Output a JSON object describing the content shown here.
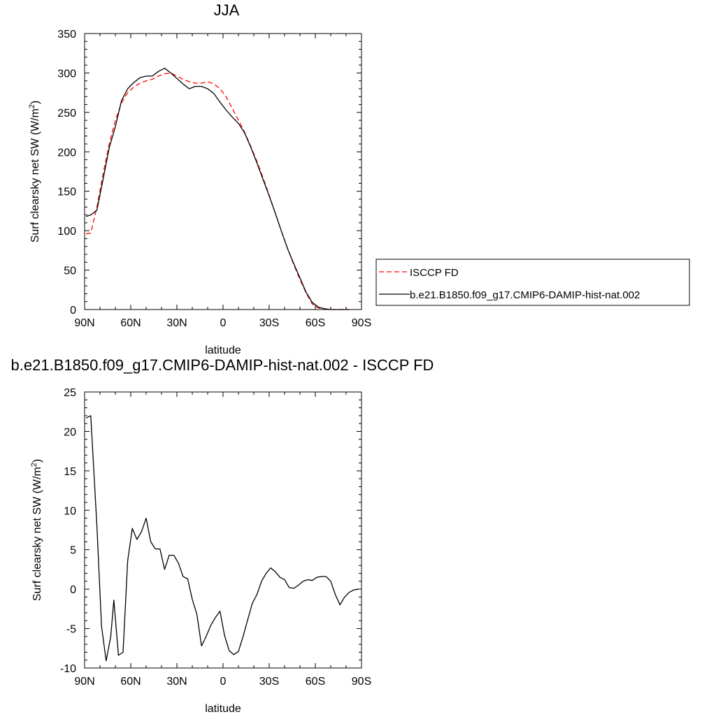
{
  "chart_data": [
    {
      "type": "line",
      "title": "JJA",
      "xlabel": "latitude",
      "ylabel": "Surf clearsky net SW (W/m",
      "ylabel_sup": "2",
      "ylabel_close": ")",
      "xlim": [
        90,
        -90
      ],
      "ylim": [
        0,
        350
      ],
      "x_ticks": [
        90,
        60,
        30,
        0,
        -30,
        -60,
        -90
      ],
      "x_tick_labels": [
        "90N",
        "60N",
        "30N",
        "0",
        "30S",
        "60S",
        "90S"
      ],
      "y_ticks": [
        0,
        50,
        100,
        150,
        200,
        250,
        300,
        350
      ],
      "y_tick_labels": [
        "0",
        "50",
        "100",
        "150",
        "200",
        "250",
        "300",
        "350"
      ],
      "grid": false,
      "legend": "right",
      "series": [
        {
          "name": "ISCCP FD",
          "color": "#ff0000",
          "dash": "dashed",
          "x": [
            89,
            86,
            82,
            78,
            74,
            70,
            66,
            62,
            58,
            54,
            50,
            46,
            42,
            38,
            34,
            30,
            26,
            22,
            18,
            14,
            10,
            6,
            2,
            -2,
            -6,
            -10,
            -14,
            -18,
            -22,
            -26,
            -30,
            -34,
            -38,
            -42,
            -46,
            -50,
            -54,
            -58,
            -62,
            -66,
            -70,
            -74,
            -78,
            -82
          ],
          "y": [
            96,
            97,
            130,
            172,
            210,
            240,
            262,
            275,
            282,
            287,
            290,
            292,
            296,
            299,
            300,
            296,
            292,
            289,
            287,
            287,
            289,
            286,
            280,
            270,
            255,
            240,
            225,
            207,
            188,
            167,
            145,
            122,
            99,
            77,
            57,
            38,
            21,
            7,
            2,
            1,
            0,
            0,
            0,
            0
          ]
        },
        {
          "name": "b.e21.B1850.f09_g17.CMIP6-DAMIP-hist-nat.002",
          "color": "#000000",
          "dash": "solid",
          "x": [
            89,
            86,
            82,
            78,
            74,
            70,
            66,
            62,
            58,
            54,
            50,
            46,
            42,
            38,
            34,
            30,
            26,
            22,
            18,
            14,
            10,
            6,
            2,
            -2,
            -6,
            -10,
            -14,
            -18,
            -22,
            -26,
            -30,
            -34,
            -38,
            -42,
            -46,
            -50,
            -54,
            -58,
            -62,
            -66,
            -70,
            -74,
            -78,
            -82
          ],
          "y": [
            118,
            120,
            126,
            165,
            205,
            232,
            265,
            280,
            288,
            294,
            296,
            296,
            302,
            306,
            300,
            293,
            286,
            280,
            283,
            283,
            280,
            274,
            263,
            253,
            244,
            236,
            224,
            206,
            186,
            165,
            144,
            122,
            99,
            77,
            58,
            40,
            22,
            9,
            3,
            1,
            0,
            0,
            0,
            0
          ]
        }
      ]
    },
    {
      "type": "line",
      "title": "b.e21.B1850.f09_g17.CMIP6-DAMIP-hist-nat.002 - ISCCP FD",
      "xlabel": "latitude",
      "ylabel": "Surf clearsky net SW (W/m",
      "ylabel_sup": "2",
      "ylabel_close": ")",
      "xlim": [
        90,
        -90
      ],
      "ylim": [
        -10,
        25
      ],
      "x_ticks": [
        90,
        60,
        30,
        0,
        -30,
        -60,
        -90
      ],
      "x_tick_labels": [
        "90N",
        "60N",
        "30N",
        "0",
        "30S",
        "60S",
        "90S"
      ],
      "y_ticks": [
        -10,
        -5,
        0,
        5,
        10,
        15,
        20,
        25
      ],
      "y_tick_labels": [
        "-10",
        "-5",
        "0",
        "5",
        "10",
        "15",
        "20",
        "25"
      ],
      "grid": false,
      "series": [
        {
          "color": "#000000",
          "dash": "solid",
          "x": [
            89,
            86,
            82,
            79,
            76,
            73,
            71,
            68,
            65,
            62,
            59,
            56,
            53,
            50,
            47,
            44,
            41,
            38,
            35,
            32,
            29,
            26,
            23,
            20,
            17,
            14,
            11,
            8,
            5,
            2,
            -1,
            -4,
            -7,
            -10,
            -13,
            -16,
            -19,
            -22,
            -25,
            -28,
            -31,
            -34,
            -37,
            -40,
            -43,
            -46,
            -49,
            -52,
            -55,
            -58,
            -61,
            -64,
            -67,
            -70,
            -73,
            -76,
            -79,
            -82,
            -85,
            -88
          ],
          "y": [
            21.7,
            22,
            8,
            -4.7,
            -9.1,
            -6,
            -1.4,
            -8.4,
            -8,
            3.6,
            7.7,
            6.3,
            7.3,
            9,
            6,
            5.1,
            5.1,
            2.5,
            4.3,
            4.3,
            3.3,
            1.6,
            1.3,
            -1.3,
            -3.2,
            -7.2,
            -6,
            -4.6,
            -3.6,
            -2.8,
            -5.9,
            -7.8,
            -8.3,
            -7.9,
            -6,
            -3.9,
            -1.8,
            -0.7,
            1,
            2,
            2.7,
            2.2,
            1.5,
            1.2,
            0.2,
            0.1,
            0.5,
            1,
            1.2,
            1.1,
            1.5,
            1.6,
            1.6,
            1,
            -0.7,
            -2,
            -1,
            -0.4,
            -0.1,
            0
          ]
        }
      ]
    }
  ]
}
